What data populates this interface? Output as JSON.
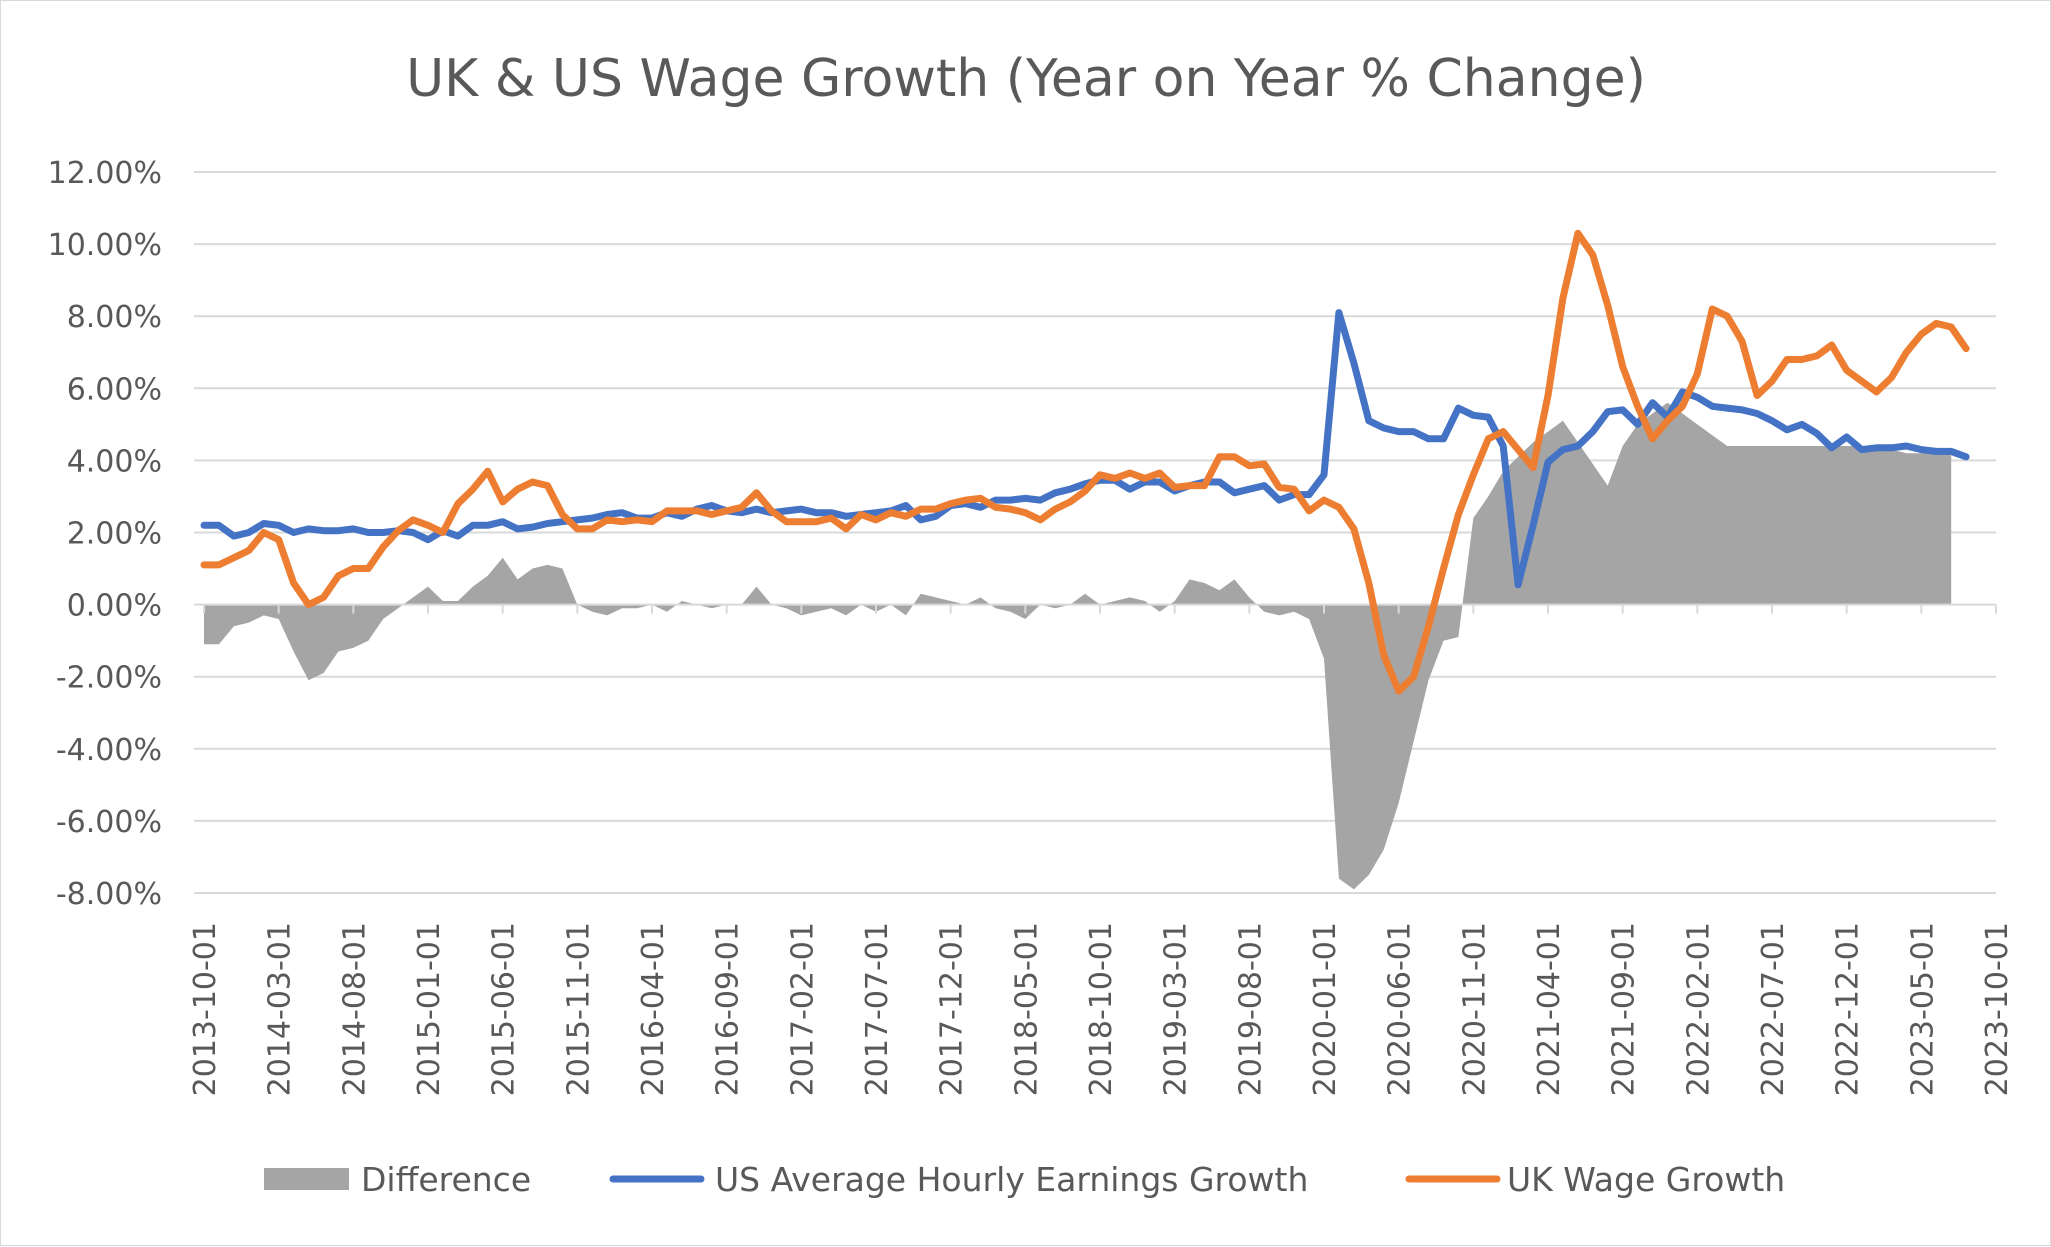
{
  "chart_data": {
    "type": "line",
    "title": "UK & US Wage Growth (Year on Year % Change)",
    "x_tick_labels": [
      "2013-10-01",
      "2014-03-01",
      "2014-08-01",
      "2015-01-01",
      "2015-06-01",
      "2015-11-01",
      "2016-04-01",
      "2016-09-01",
      "2017-02-01",
      "2017-07-01",
      "2017-12-01",
      "2018-05-01",
      "2018-10-01",
      "2019-03-01",
      "2019-08-01",
      "2020-01-01",
      "2020-06-01",
      "2020-11-01",
      "2021-04-01",
      "2021-09-01",
      "2022-02-01",
      "2022-07-01",
      "2022-12-01",
      "2023-05-01",
      "2023-10-01"
    ],
    "y_tick_labels": [
      "12.00%",
      "10.00%",
      "8.00%",
      "6.00%",
      "4.00%",
      "2.00%",
      "0.00%",
      "-2.00%",
      "-4.00%",
      "-6.00%",
      "-8.00%"
    ],
    "ylim": [
      -8,
      12
    ],
    "grid": true,
    "legend_position": "bottom",
    "x_start": "2013-10",
    "x_end": "2023-10",
    "series": [
      {
        "name": "Difference",
        "kind": "area",
        "color": "#a5a5a5",
        "values": [
          -1.1,
          -1.1,
          -0.6,
          -0.5,
          -0.3,
          -0.4,
          -1.3,
          -2.1,
          -1.9,
          -1.3,
          -1.2,
          -1.0,
          -0.4,
          -0.1,
          0.2,
          0.5,
          0.1,
          0.1,
          0.5,
          0.8,
          1.3,
          0.7,
          1.0,
          1.1,
          1.0,
          0.0,
          -0.2,
          -0.3,
          -0.1,
          -0.1,
          0.0,
          -0.2,
          0.1,
          0.0,
          -0.1,
          0.0,
          0.0,
          0.5,
          0.0,
          -0.1,
          -0.3,
          -0.2,
          -0.1,
          -0.3,
          0.0,
          -0.2,
          0.0,
          -0.3,
          0.3,
          0.2,
          0.1,
          0.0,
          0.2,
          -0.1,
          -0.2,
          -0.4,
          0.0,
          -0.1,
          0.0,
          0.3,
          0.0,
          0.1,
          0.2,
          0.1,
          -0.2,
          0.1,
          0.7,
          0.6,
          0.4,
          0.7,
          0.2,
          -0.2,
          -0.3,
          -0.2,
          -0.4,
          -1.5,
          -7.6,
          -7.9,
          -7.5,
          -6.8,
          -5.5,
          -3.8,
          -2.1,
          -1.0,
          -0.9,
          2.4,
          3.0,
          3.7,
          4.1,
          4.5,
          4.8,
          5.1,
          4.5,
          3.9,
          3.3,
          4.4,
          5.0,
          5.3,
          5.6,
          5.3,
          5.0,
          4.7,
          4.4,
          4.4,
          4.4,
          4.4,
          4.4,
          4.4,
          4.4,
          4.4,
          4.4,
          4.4,
          4.4,
          4.3,
          4.2,
          4.2,
          4.2,
          4.2
        ]
      },
      {
        "name": "US Average Hourly Earnings Growth",
        "kind": "line",
        "color": "#4472c4",
        "values": [
          2.2,
          2.2,
          1.9,
          2.0,
          2.25,
          2.2,
          2.0,
          2.1,
          2.05,
          2.05,
          2.1,
          2.0,
          2.0,
          2.05,
          2.0,
          1.8,
          2.05,
          1.9,
          2.2,
          2.2,
          2.3,
          2.1,
          2.15,
          2.25,
          2.3,
          2.35,
          2.4,
          2.5,
          2.55,
          2.4,
          2.4,
          2.55,
          2.45,
          2.65,
          2.75,
          2.6,
          2.55,
          2.65,
          2.55,
          2.6,
          2.65,
          2.55,
          2.55,
          2.45,
          2.5,
          2.55,
          2.6,
          2.75,
          2.35,
          2.45,
          2.75,
          2.8,
          2.7,
          2.9,
          2.9,
          2.95,
          2.9,
          3.1,
          3.2,
          3.35,
          3.45,
          3.45,
          3.2,
          3.4,
          3.4,
          3.15,
          3.3,
          3.4,
          3.4,
          3.1,
          3.2,
          3.3,
          2.9,
          3.05,
          3.05,
          3.6,
          8.1,
          6.7,
          5.1,
          4.9,
          4.8,
          4.8,
          4.6,
          4.6,
          5.45,
          5.25,
          5.2,
          4.4,
          0.55,
          2.2,
          3.95,
          4.3,
          4.4,
          4.8,
          5.35,
          5.4,
          5.0,
          5.6,
          5.2,
          5.9,
          5.75,
          5.5,
          5.45,
          5.4,
          5.3,
          5.1,
          4.85,
          5.0,
          4.75,
          4.35,
          4.65,
          4.3,
          4.35,
          4.35,
          4.4,
          4.3,
          4.25,
          4.25,
          4.1
        ]
      },
      {
        "name": "UK Wage Growth",
        "kind": "line",
        "color": "#ed7d31",
        "values": [
          1.1,
          1.1,
          1.3,
          1.5,
          2.0,
          1.8,
          0.6,
          0.0,
          0.2,
          0.8,
          1.0,
          1.0,
          1.6,
          2.05,
          2.35,
          2.2,
          2.0,
          2.8,
          3.2,
          3.7,
          2.85,
          3.2,
          3.4,
          3.3,
          2.5,
          2.1,
          2.1,
          2.35,
          2.3,
          2.35,
          2.3,
          2.6,
          2.6,
          2.6,
          2.5,
          2.6,
          2.7,
          3.1,
          2.6,
          2.3,
          2.3,
          2.3,
          2.4,
          2.1,
          2.5,
          2.35,
          2.55,
          2.45,
          2.65,
          2.65,
          2.8,
          2.9,
          2.95,
          2.7,
          2.65,
          2.55,
          2.35,
          2.65,
          2.85,
          3.15,
          3.6,
          3.5,
          3.65,
          3.5,
          3.65,
          3.25,
          3.3,
          3.3,
          4.1,
          4.1,
          3.85,
          3.9,
          3.25,
          3.2,
          2.6,
          2.9,
          2.7,
          2.1,
          0.6,
          -1.4,
          -2.4,
          -2.0,
          -0.6,
          1.0,
          2.5,
          3.6,
          4.6,
          4.8,
          4.3,
          3.8,
          5.8,
          8.5,
          10.3,
          9.7,
          8.3,
          6.6,
          5.5,
          4.6,
          5.1,
          5.5,
          6.4,
          8.2,
          8.0,
          7.3,
          5.8,
          6.2,
          6.8,
          6.8,
          6.9,
          7.2,
          6.5,
          6.2,
          5.9,
          6.3,
          7.0,
          7.5,
          7.8,
          7.7,
          7.1
        ]
      }
    ]
  }
}
